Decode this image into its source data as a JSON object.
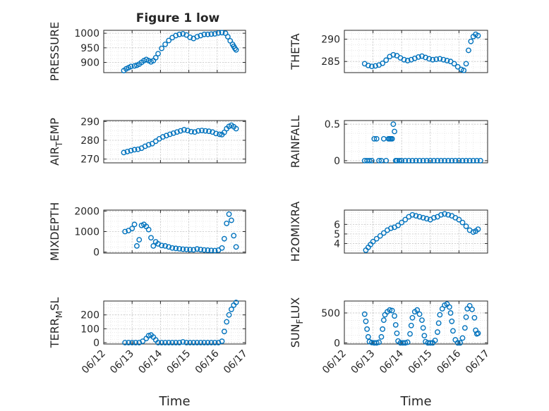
{
  "figure": {
    "title": "Figure 1 low",
    "marker_color": "#0072bd",
    "grid": true
  },
  "chart_data": [
    {
      "type": "scatter",
      "ylabel": "PRESSURE",
      "xlim": [
        "06/12",
        "06/17"
      ],
      "ylim": [
        865,
        1010
      ],
      "yticks": [
        900,
        950,
        1000
      ],
      "xticks": [
        "06/12",
        "06/13",
        "06/14",
        "06/15",
        "06/16",
        "06/17"
      ],
      "show_xticklabels": false,
      "series": [
        {
          "x": [
            "06/12 17:00",
            "06/12 19:00",
            "06/12 21:00",
            "06/12 23:00",
            "06/13 02:00",
            "06/13 04:00",
            "06/13 06:00",
            "06/13 08:00",
            "06/13 10:00",
            "06/13 12:00",
            "06/13 14:00",
            "06/13 16:00",
            "06/13 18:00",
            "06/13 20:00",
            "06/13 22:00",
            "06/14 01:00",
            "06/14 04:00",
            "06/14 07:00",
            "06/14 10:00",
            "06/14 13:00",
            "06/14 16:00",
            "06/14 19:00",
            "06/14 22:00",
            "06/15 01:00",
            "06/15 04:00",
            "06/15 07:00",
            "06/15 10:00",
            "06/15 13:00",
            "06/15 16:00",
            "06/15 19:00",
            "06/15 22:00",
            "06/16 01:00",
            "06/16 04:00",
            "06/16 07:00",
            "06/16 09:00",
            "06/16 11:00",
            "06/16 13:00",
            "06/16 14:00",
            "06/16 15:00",
            "06/16 16:00"
          ],
          "y": [
            872,
            878,
            882,
            886,
            888,
            890,
            894,
            900,
            906,
            910,
            906,
            902,
            906,
            916,
            930,
            948,
            962,
            975,
            985,
            992,
            996,
            998,
            994,
            986,
            982,
            988,
            992,
            996,
            996,
            997,
            998,
            1001,
            1002,
            1000,
            988,
            974,
            962,
            955,
            948,
            943
          ]
        }
      ]
    },
    {
      "type": "scatter",
      "ylabel": "THETA",
      "xlim": [
        "06/12",
        "06/17"
      ],
      "ylim": [
        282.5,
        292
      ],
      "yticks": [
        285,
        290
      ],
      "xticks": [
        "06/12",
        "06/13",
        "06/14",
        "06/15",
        "06/16",
        "06/17"
      ],
      "show_xticklabels": false,
      "series": [
        {
          "x": [
            "06/12 17:00",
            "06/12 20:00",
            "06/12 23:00",
            "06/13 02:00",
            "06/13 05:00",
            "06/13 08:00",
            "06/13 11:00",
            "06/13 14:00",
            "06/13 17:00",
            "06/13 20:00",
            "06/13 23:00",
            "06/14 02:00",
            "06/14 05:00",
            "06/14 08:00",
            "06/14 11:00",
            "06/14 14:00",
            "06/14 17:00",
            "06/14 20:00",
            "06/14 23:00",
            "06/15 02:00",
            "06/15 05:00",
            "06/15 08:00",
            "06/15 11:00",
            "06/15 14:00",
            "06/15 17:00",
            "06/15 20:00",
            "06/15 23:00",
            "06/16 02:00",
            "06/16 04:00",
            "06/16 06:00",
            "06/16 08:00",
            "06/16 10:00",
            "06/16 12:00",
            "06/16 14:00",
            "06/16 16:00"
          ],
          "y": [
            284.5,
            284.1,
            283.9,
            284.0,
            284.2,
            284.6,
            285.3,
            286.1,
            286.5,
            286.3,
            285.8,
            285.4,
            285.2,
            285.4,
            285.7,
            286.0,
            286.2,
            285.9,
            285.6,
            285.4,
            285.5,
            285.6,
            285.4,
            285.2,
            285.0,
            284.5,
            283.8,
            283.2,
            283.0,
            284.5,
            287.5,
            289.5,
            290.6,
            291.1,
            290.8
          ]
        }
      ]
    },
    {
      "type": "scatter",
      "ylabel": "AIR_TEMP",
      "xlim": [
        "06/12",
        "06/17"
      ],
      "ylim": [
        268,
        290.5
      ],
      "yticks": [
        270,
        280,
        290
      ],
      "xticks": [
        "06/12",
        "06/13",
        "06/14",
        "06/15",
        "06/16",
        "06/17"
      ],
      "show_xticklabels": false,
      "series": [
        {
          "x": [
            "06/12 17:00",
            "06/12 20:00",
            "06/12 23:00",
            "06/13 02:00",
            "06/13 05:00",
            "06/13 08:00",
            "06/13 11:00",
            "06/13 14:00",
            "06/13 17:00",
            "06/13 20:00",
            "06/13 23:00",
            "06/14 02:00",
            "06/14 05:00",
            "06/14 08:00",
            "06/14 11:00",
            "06/14 14:00",
            "06/14 17:00",
            "06/14 20:00",
            "06/14 23:00",
            "06/15 02:00",
            "06/15 05:00",
            "06/15 08:00",
            "06/15 11:00",
            "06/15 14:00",
            "06/15 17:00",
            "06/15 20:00",
            "06/15 23:00",
            "06/16 02:00",
            "06/16 04:00",
            "06/16 06:00",
            "06/16 08:00",
            "06/16 10:00",
            "06/16 12:00",
            "06/16 14:00",
            "06/16 16:00"
          ],
          "y": [
            273.5,
            274.0,
            274.5,
            275.0,
            275.2,
            275.8,
            276.8,
            277.6,
            278.2,
            279.5,
            280.8,
            281.8,
            282.5,
            283.2,
            283.8,
            284.4,
            285.0,
            285.6,
            285.2,
            284.6,
            284.4,
            285.0,
            285.2,
            285.0,
            284.8,
            284.4,
            283.6,
            283.2,
            283.0,
            284.2,
            286.2,
            287.4,
            288.0,
            287.2,
            286.2
          ]
        }
      ]
    },
    {
      "type": "scatter",
      "ylabel": "RAINFALL",
      "xlim": [
        "06/12",
        "06/17"
      ],
      "ylim": [
        -0.03,
        0.55
      ],
      "yticks": [
        0,
        0.5
      ],
      "xticks": [
        "06/12",
        "06/13",
        "06/14",
        "06/15",
        "06/16",
        "06/17"
      ],
      "show_xticklabels": false,
      "series": [
        {
          "x": [
            "06/12 17:00",
            "06/12 19:00",
            "06/12 21:00",
            "06/12 23:00",
            "06/13 01:00",
            "06/13 03:00",
            "06/13 05:00",
            "06/13 07:00",
            "06/13 09:00",
            "06/13 11:00",
            "06/13 13:00",
            "06/13 14:00",
            "06/13 15:00",
            "06/13 16:00",
            "06/13 17:00",
            "06/13 18:00",
            "06/13 19:00",
            "06/13 20:00",
            "06/13 22:00",
            "06/14 00:00",
            "06/14 03:00",
            "06/14 06:00",
            "06/14 09:00",
            "06/14 12:00",
            "06/14 15:00",
            "06/14 18:00",
            "06/14 21:00",
            "06/15 00:00",
            "06/15 03:00",
            "06/15 06:00",
            "06/15 09:00",
            "06/15 12:00",
            "06/15 15:00",
            "06/15 18:00",
            "06/15 21:00",
            "06/16 00:00",
            "06/16 03:00",
            "06/16 06:00",
            "06/16 09:00",
            "06/16 12:00",
            "06/16 15:00",
            "06/16 18:00"
          ],
          "y": [
            0,
            0,
            0,
            0,
            0.3,
            0.3,
            0,
            0,
            0.3,
            0,
            0.3,
            0.3,
            0.3,
            0.3,
            0.5,
            0.4,
            0,
            0,
            0,
            0,
            0,
            0,
            0,
            0,
            0,
            0,
            0,
            0,
            0,
            0,
            0,
            0,
            0,
            0,
            0,
            0,
            0,
            0,
            0,
            0,
            0,
            0
          ]
        }
      ]
    },
    {
      "type": "scatter",
      "ylabel": "MIXDEPTH",
      "xlim": [
        "06/12",
        "06/17"
      ],
      "ylim": [
        -50,
        2050
      ],
      "yticks": [
        0,
        1000,
        2000
      ],
      "xticks": [
        "06/12",
        "06/13",
        "06/14",
        "06/15",
        "06/16",
        "06/17"
      ],
      "show_xticklabels": false,
      "series": [
        {
          "x": [
            "06/12 18:00",
            "06/12 21:00",
            "06/13 00:00",
            "06/13 02:00",
            "06/13 04:00",
            "06/13 06:00",
            "06/13 08:00",
            "06/13 10:00",
            "06/13 12:00",
            "06/13 14:00",
            "06/13 16:00",
            "06/13 18:00",
            "06/13 20:00",
            "06/13 22:00",
            "06/14 01:00",
            "06/14 04:00",
            "06/14 07:00",
            "06/14 10:00",
            "06/14 13:00",
            "06/14 16:00",
            "06/14 19:00",
            "06/14 22:00",
            "06/15 01:00",
            "06/15 04:00",
            "06/15 07:00",
            "06/15 10:00",
            "06/15 13:00",
            "06/15 16:00",
            "06/15 19:00",
            "06/15 22:00",
            "06/16 01:00",
            "06/16 04:00",
            "06/16 06:00",
            "06/16 08:00",
            "06/16 10:00",
            "06/16 12:00",
            "06/16 14:00",
            "06/16 16:00"
          ],
          "y": [
            1000,
            1050,
            1150,
            1350,
            300,
            600,
            1300,
            1350,
            1250,
            1100,
            700,
            300,
            500,
            400,
            320,
            300,
            250,
            200,
            180,
            160,
            140,
            130,
            120,
            110,
            150,
            120,
            100,
            90,
            80,
            70,
            90,
            200,
            650,
            1400,
            1850,
            1550,
            800,
            250
          ]
        }
      ]
    },
    {
      "type": "scatter",
      "ylabel": "H2OMIXRA",
      "xlim": [
        "06/12",
        "06/17"
      ],
      "ylim": [
        3,
        7.5
      ],
      "yticks": [
        4,
        5,
        6
      ],
      "xticks": [
        "06/12",
        "06/13",
        "06/14",
        "06/15",
        "06/16",
        "06/17"
      ],
      "show_xticklabels": false,
      "series": [
        {
          "x": [
            "06/12 18:00",
            "06/12 20:00",
            "06/12 22:00",
            "06/13 00:00",
            "06/13 03:00",
            "06/13 06:00",
            "06/13 09:00",
            "06/13 12:00",
            "06/13 15:00",
            "06/13 18:00",
            "06/13 21:00",
            "06/14 00:00",
            "06/14 03:00",
            "06/14 06:00",
            "06/14 09:00",
            "06/14 12:00",
            "06/14 15:00",
            "06/14 18:00",
            "06/14 21:00",
            "06/15 00:00",
            "06/15 03:00",
            "06/15 06:00",
            "06/15 09:00",
            "06/15 12:00",
            "06/15 15:00",
            "06/15 18:00",
            "06/15 21:00",
            "06/16 00:00",
            "06/16 03:00",
            "06/16 06:00",
            "06/16 09:00",
            "06/16 12:00",
            "06/16 14:00",
            "06/16 16:00"
          ],
          "y": [
            3.3,
            3.6,
            3.9,
            4.2,
            4.5,
            4.8,
            5.1,
            5.4,
            5.6,
            5.7,
            5.9,
            6.2,
            6.5,
            6.8,
            7.0,
            6.9,
            6.8,
            6.7,
            6.6,
            6.5,
            6.7,
            6.8,
            7.0,
            7.1,
            7.0,
            6.9,
            6.7,
            6.5,
            6.2,
            5.8,
            5.4,
            5.2,
            5.3,
            5.5
          ]
        }
      ]
    },
    {
      "type": "scatter",
      "ylabel": "TERR_MSL",
      "xlim": [
        "06/12",
        "06/17"
      ],
      "ylim": [
        -10,
        300
      ],
      "yticks": [
        0,
        100,
        200
      ],
      "xticks": [
        "06/12",
        "06/13",
        "06/14",
        "06/15",
        "06/16",
        "06/17"
      ],
      "show_xticklabels": true,
      "xlabel": "Time",
      "series": [
        {
          "x": [
            "06/12 18:00",
            "06/12 21:00",
            "06/13 00:00",
            "06/13 03:00",
            "06/13 06:00",
            "06/13 09:00",
            "06/13 12:00",
            "06/13 14:00",
            "06/13 16:00",
            "06/13 18:00",
            "06/13 20:00",
            "06/13 22:00",
            "06/14 01:00",
            "06/14 04:00",
            "06/14 07:00",
            "06/14 10:00",
            "06/14 13:00",
            "06/14 16:00",
            "06/14 19:00",
            "06/14 22:00",
            "06/15 01:00",
            "06/15 04:00",
            "06/15 07:00",
            "06/15 10:00",
            "06/15 13:00",
            "06/15 16:00",
            "06/15 19:00",
            "06/15 22:00",
            "06/16 01:00",
            "06/16 04:00",
            "06/16 06:00",
            "06/16 08:00",
            "06/16 10:00",
            "06/16 12:00",
            "06/16 14:00",
            "06/16 16:00"
          ],
          "y": [
            0,
            0,
            0,
            0,
            0,
            10,
            30,
            50,
            55,
            40,
            20,
            0,
            0,
            0,
            0,
            0,
            0,
            0,
            5,
            0,
            0,
            0,
            0,
            0,
            0,
            0,
            0,
            0,
            0,
            10,
            80,
            150,
            200,
            240,
            270,
            290
          ]
        }
      ]
    },
    {
      "type": "scatter",
      "ylabel": "SUN_FLUX",
      "xlim": [
        "06/12",
        "06/17"
      ],
      "ylim": [
        -20,
        700
      ],
      "yticks": [
        0,
        500
      ],
      "xticks": [
        "06/12",
        "06/13",
        "06/14",
        "06/15",
        "06/16",
        "06/17"
      ],
      "show_xticklabels": true,
      "xlabel": "Time",
      "series": [
        {
          "x": [
            "06/12 17:00",
            "06/12 18:00",
            "06/12 19:00",
            "06/12 20:00",
            "06/12 21:00",
            "06/12 23:00",
            "06/13 01:00",
            "06/13 03:00",
            "06/13 05:00",
            "06/13 07:00",
            "06/13 08:00",
            "06/13 09:00",
            "06/13 10:00",
            "06/13 12:00",
            "06/13 14:00",
            "06/13 16:00",
            "06/13 18:00",
            "06/13 19:00",
            "06/13 20:00",
            "06/13 21:00",
            "06/13 23:00",
            "06/14 01:00",
            "06/14 03:00",
            "06/14 05:00",
            "06/14 07:00",
            "06/14 08:00",
            "06/14 09:00",
            "06/14 11:00",
            "06/14 13:00",
            "06/14 15:00",
            "06/14 17:00",
            "06/14 18:00",
            "06/14 19:00",
            "06/14 20:00",
            "06/14 22:00",
            "06/15 00:00",
            "06/15 02:00",
            "06/15 04:00",
            "06/15 06:00",
            "06/15 07:00",
            "06/15 08:00",
            "06/15 10:00",
            "06/15 12:00",
            "06/15 14:00",
            "06/15 16:00",
            "06/15 17:00",
            "06/15 18:00",
            "06/15 19:00",
            "06/15 21:00",
            "06/15 23:00",
            "06/16 01:00",
            "06/16 03:00",
            "06/16 05:00",
            "06/16 06:00",
            "06/16 07:00",
            "06/16 09:00",
            "06/16 11:00",
            "06/16 13:00",
            "06/16 14:00",
            "06/16 15:00",
            "06/16 16:00"
          ],
          "y": [
            480,
            360,
            230,
            100,
            20,
            5,
            0,
            0,
            10,
            100,
            230,
            380,
            470,
            520,
            550,
            540,
            450,
            300,
            160,
            30,
            0,
            0,
            0,
            10,
            150,
            290,
            420,
            520,
            550,
            480,
            380,
            250,
            120,
            20,
            0,
            0,
            0,
            40,
            180,
            330,
            470,
            570,
            630,
            650,
            600,
            500,
            360,
            200,
            50,
            0,
            0,
            80,
            250,
            430,
            570,
            620,
            560,
            420,
            210,
            150,
            160
          ]
        }
      ]
    }
  ]
}
